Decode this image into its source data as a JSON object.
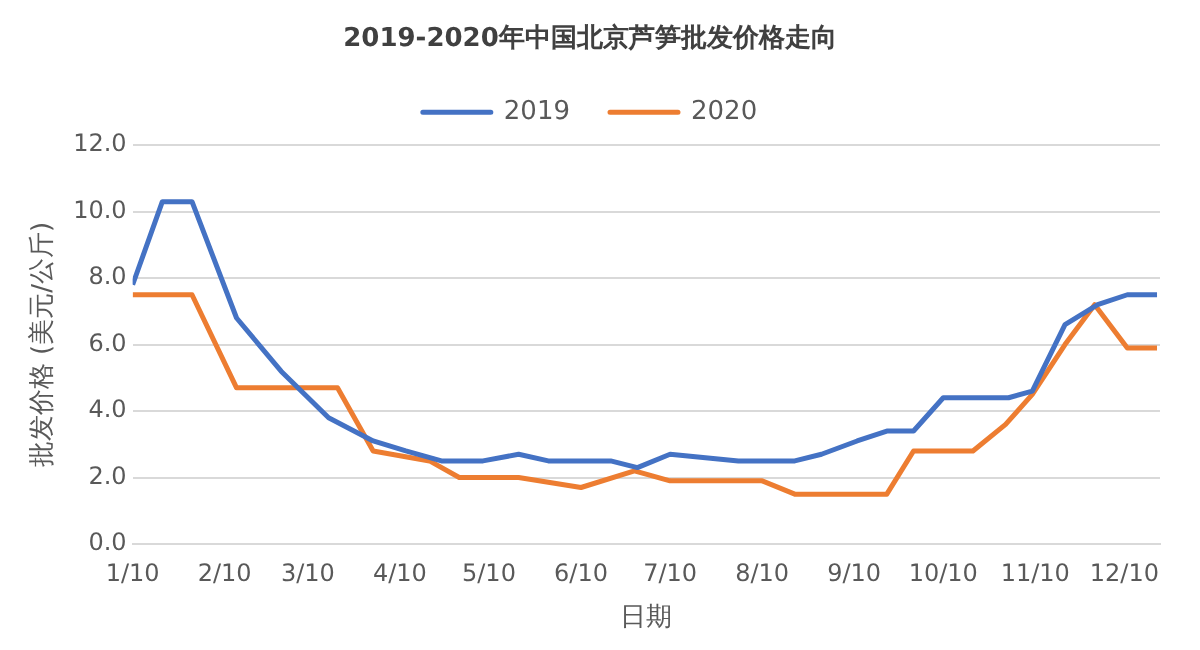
{
  "chart_data": {
    "type": "line",
    "title": "2019-2020年中国北京芦笋批发价格走向",
    "xlabel": "日期",
    "ylabel": "批发价格 (美元/公斤)",
    "xlim": [
      "--01-10",
      "--12-22"
    ],
    "xticks": [
      {
        "value": "--01-10",
        "label": "1/10"
      },
      {
        "value": "--02-10",
        "label": "2/10"
      },
      {
        "value": "--03-10",
        "label": "3/10"
      },
      {
        "value": "--04-10",
        "label": "4/10"
      },
      {
        "value": "--05-10",
        "label": "5/10"
      },
      {
        "value": "--06-10",
        "label": "6/10"
      },
      {
        "value": "--07-10",
        "label": "7/10"
      },
      {
        "value": "--08-10",
        "label": "8/10"
      },
      {
        "value": "--09-10",
        "label": "9/10"
      },
      {
        "value": "--10-10",
        "label": "10/10"
      },
      {
        "value": "--11-10",
        "label": "11/10"
      },
      {
        "value": "--12-10",
        "label": "12/10"
      }
    ],
    "ylim": [
      0,
      12
    ],
    "yticks": [
      {
        "value": 0,
        "label": "0.0"
      },
      {
        "value": 2,
        "label": "2.0"
      },
      {
        "value": 4,
        "label": "4.0"
      },
      {
        "value": 6,
        "label": "6.0"
      },
      {
        "value": 8,
        "label": "8.0"
      },
      {
        "value": 10,
        "label": "10.0"
      },
      {
        "value": 12,
        "label": "12.0"
      }
    ],
    "grid": "y",
    "legend": "top",
    "marker": "none",
    "line_style": "solid",
    "series": [
      {
        "name": "2019",
        "color": "#4472c4",
        "x": [
          "--01-10",
          "--01-20",
          "--01-30",
          "--02-14",
          "--03-01",
          "--03-17",
          "--04-01",
          "--04-12",
          "--04-24",
          "--05-08",
          "--05-20",
          "--05-30",
          "--06-20",
          "--06-29",
          "--07-10",
          "--08-02",
          "--08-21",
          "--08-30",
          "--09-11",
          "--09-21",
          "--09-30",
          "--10-10",
          "--11-01",
          "--11-09",
          "--11-20",
          "--12-01",
          "--12-11",
          "--12-21"
        ],
        "values": [
          7.8,
          10.3,
          10.3,
          6.8,
          5.2,
          3.8,
          3.1,
          2.8,
          2.5,
          2.5,
          2.7,
          2.5,
          2.5,
          2.3,
          2.7,
          2.5,
          2.5,
          2.7,
          3.1,
          3.4,
          3.4,
          4.4,
          4.4,
          4.6,
          6.6,
          7.2,
          7.5,
          7.5
        ]
      },
      {
        "name": "2020",
        "color": "#ed7d31",
        "x": [
          "--01-10",
          "--01-30",
          "--02-14",
          "--03-20",
          "--04-01",
          "--04-20",
          "--04-30",
          "--05-20",
          "--06-10",
          "--06-28",
          "--07-10",
          "--08-10",
          "--08-21",
          "--09-21",
          "--09-30",
          "--10-20",
          "--10-31",
          "--11-09",
          "--11-20",
          "--11-30",
          "--12-11",
          "--12-21"
        ],
        "values": [
          7.5,
          7.5,
          4.7,
          4.7,
          2.8,
          2.5,
          2.0,
          2.0,
          1.7,
          2.2,
          1.9,
          1.9,
          1.5,
          1.5,
          2.8,
          2.8,
          3.6,
          4.5,
          6.0,
          7.2,
          5.9,
          5.9
        ]
      }
    ]
  }
}
